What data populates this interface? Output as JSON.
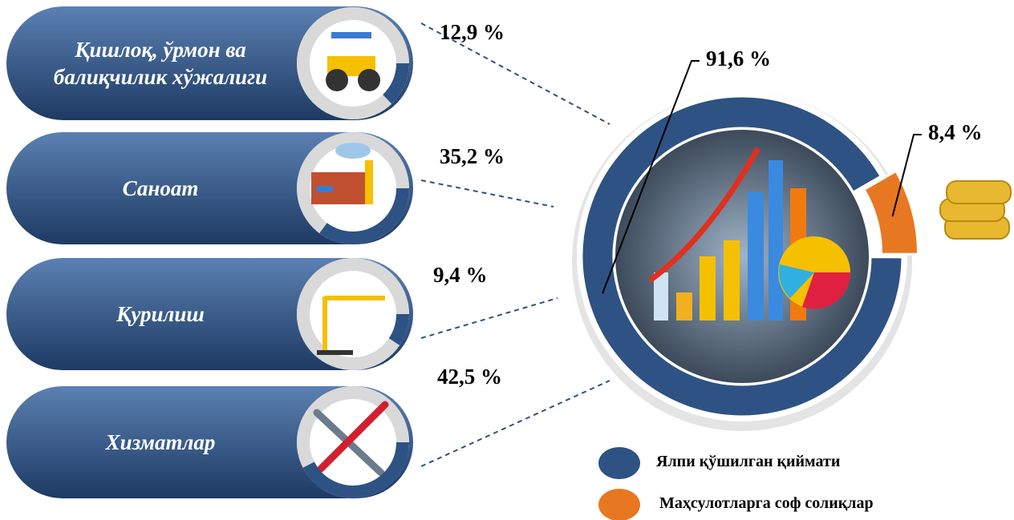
{
  "chart_data": [
    {
      "type": "ring",
      "categories": [
        "Қишлоқ, ўрмон ва балиқчилик хўжалиги",
        "Саноат",
        "Қурилиш",
        "Хизматлар"
      ],
      "values": [
        12.9,
        35.2,
        9.4,
        42.5
      ],
      "value_labels": [
        "12,9 %",
        "35,2 %",
        "9,4 %",
        "42,5 %"
      ],
      "color": "#2e5283"
    },
    {
      "type": "pie",
      "categories": [
        "Ялпи қўшилган қиймати",
        "Маҳсулотларга соф солиқлар"
      ],
      "values": [
        91.6,
        8.4
      ],
      "value_labels": [
        "91,6 %",
        "8,4 %"
      ],
      "colors": [
        "#2e5283",
        "#e87722"
      ]
    }
  ]
}
